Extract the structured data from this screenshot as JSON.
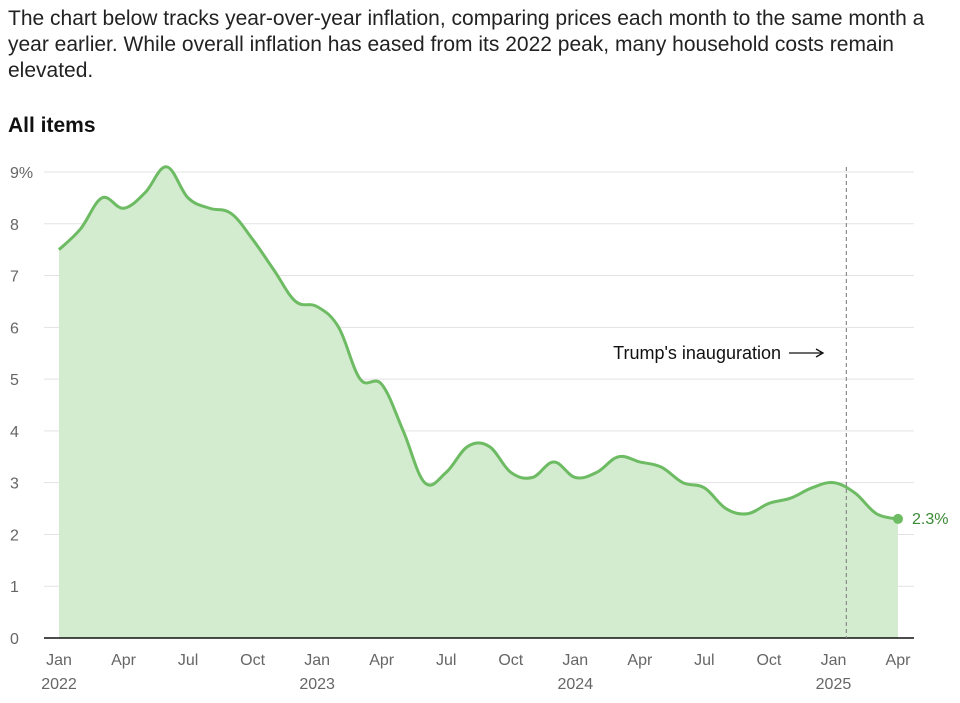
{
  "intro_text": "The chart below tracks year-over-year inflation, comparing prices each month to the same month a year earlier. While overall inflation has eased from its 2022 peak, many household costs remain elevated.",
  "colors": {
    "line": "#6dbb63",
    "fill": "#d3ebcf",
    "label": "#3a8a35",
    "grid": "#e3e3e3",
    "axis": "#111111"
  },
  "chart_data": {
    "type": "area",
    "title": "All items",
    "xlabel": "",
    "ylabel": "",
    "ylim": [
      0,
      9
    ],
    "y_ticks": [
      0,
      1,
      2,
      3,
      4,
      5,
      6,
      7,
      8,
      9
    ],
    "y_tick_labels": [
      "0",
      "1",
      "2",
      "3",
      "4",
      "5",
      "6",
      "7",
      "8",
      "9%"
    ],
    "x_ticks": [
      {
        "index": 0,
        "month": "Jan",
        "year": "2022"
      },
      {
        "index": 3,
        "month": "Apr",
        "year": ""
      },
      {
        "index": 6,
        "month": "Jul",
        "year": ""
      },
      {
        "index": 9,
        "month": "Oct",
        "year": ""
      },
      {
        "index": 12,
        "month": "Jan",
        "year": "2023"
      },
      {
        "index": 15,
        "month": "Apr",
        "year": ""
      },
      {
        "index": 18,
        "month": "Jul",
        "year": ""
      },
      {
        "index": 21,
        "month": "Oct",
        "year": ""
      },
      {
        "index": 24,
        "month": "Jan",
        "year": "2024"
      },
      {
        "index": 27,
        "month": "Apr",
        "year": ""
      },
      {
        "index": 30,
        "month": "Jul",
        "year": ""
      },
      {
        "index": 33,
        "month": "Oct",
        "year": ""
      },
      {
        "index": 36,
        "month": "Jan",
        "year": "2025"
      },
      {
        "index": 39,
        "month": "Apr",
        "year": ""
      }
    ],
    "series": [
      {
        "name": "All items",
        "values": [
          7.5,
          7.9,
          8.5,
          8.3,
          8.6,
          9.1,
          8.5,
          8.3,
          8.2,
          7.7,
          7.1,
          6.5,
          6.4,
          6.0,
          5.0,
          4.9,
          4.0,
          3.0,
          3.2,
          3.7,
          3.7,
          3.2,
          3.1,
          3.4,
          3.1,
          3.2,
          3.5,
          3.4,
          3.3,
          3.0,
          2.9,
          2.5,
          2.4,
          2.6,
          2.7,
          2.9,
          3.0,
          2.8,
          2.4,
          2.3
        ]
      }
    ],
    "end_label": "2.3%",
    "annotation": {
      "text": "Trump's inauguration",
      "x_index": 36.6
    }
  }
}
